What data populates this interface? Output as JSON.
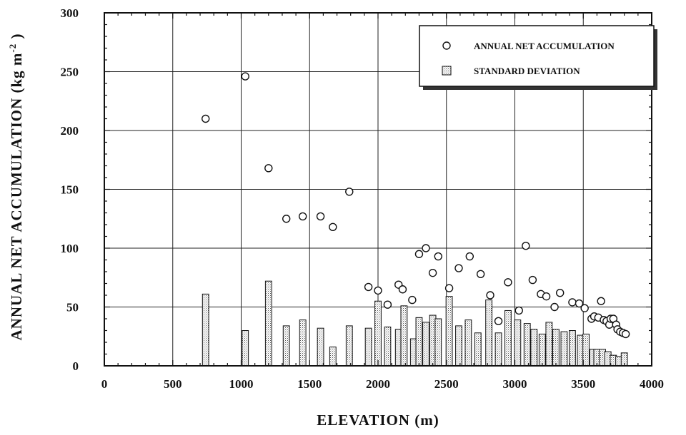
{
  "chart_data": {
    "type": "bar",
    "xlabel": "ELEVATION (m)",
    "ylabel_main": "ANNUAL NET ACCUMULATION (kg m",
    "ylabel_sup": "-2",
    "ylabel_close": " )",
    "xlim": [
      0,
      4000
    ],
    "ylim": [
      0,
      300
    ],
    "x_ticks": [
      0,
      500,
      1000,
      1500,
      2000,
      2500,
      3000,
      3500,
      4000
    ],
    "y_ticks": [
      0,
      50,
      100,
      150,
      200,
      250,
      300
    ],
    "grid": true,
    "legend_position": "top-right",
    "legend": [
      {
        "label": "ANNUAL NET ACCUMULATION",
        "marker": "circle"
      },
      {
        "label": "STANDARD DEVIATION",
        "marker": "stippled-bar"
      }
    ],
    "series": [
      {
        "name": "ANNUAL NET ACCUMULATION",
        "type": "scatter",
        "points": [
          [
            740,
            210
          ],
          [
            1030,
            246
          ],
          [
            1200,
            168
          ],
          [
            1330,
            125
          ],
          [
            1450,
            127
          ],
          [
            1580,
            127
          ],
          [
            1670,
            118
          ],
          [
            1790,
            148
          ],
          [
            1930,
            67
          ],
          [
            2000,
            64
          ],
          [
            2070,
            52
          ],
          [
            2150,
            69
          ],
          [
            2180,
            65
          ],
          [
            2250,
            56
          ],
          [
            2300,
            95
          ],
          [
            2350,
            100
          ],
          [
            2400,
            79
          ],
          [
            2440,
            93
          ],
          [
            2520,
            66
          ],
          [
            2590,
            83
          ],
          [
            2670,
            93
          ],
          [
            2750,
            78
          ],
          [
            2820,
            60
          ],
          [
            2880,
            38
          ],
          [
            2950,
            71
          ],
          [
            3030,
            47
          ],
          [
            3080,
            102
          ],
          [
            3130,
            73
          ],
          [
            3190,
            61
          ],
          [
            3230,
            59
          ],
          [
            3290,
            50
          ],
          [
            3330,
            62
          ],
          [
            3420,
            54
          ],
          [
            3470,
            53
          ],
          [
            3510,
            49
          ],
          [
            3560,
            40
          ],
          [
            3580,
            42
          ],
          [
            3610,
            41
          ],
          [
            3630,
            55
          ],
          [
            3650,
            39
          ],
          [
            3670,
            38
          ],
          [
            3690,
            35
          ],
          [
            3700,
            40
          ],
          [
            3720,
            40
          ],
          [
            3740,
            35
          ],
          [
            3750,
            31
          ],
          [
            3770,
            29
          ],
          [
            3790,
            28
          ],
          [
            3810,
            27
          ]
        ]
      },
      {
        "name": "STANDARD DEVIATION",
        "type": "bar",
        "bar_width": 46,
        "points": [
          [
            740,
            61
          ],
          [
            1030,
            30
          ],
          [
            1200,
            72
          ],
          [
            1330,
            34
          ],
          [
            1450,
            39
          ],
          [
            1580,
            32
          ],
          [
            1670,
            16
          ],
          [
            1790,
            34
          ],
          [
            1930,
            32
          ],
          [
            2000,
            55
          ],
          [
            2070,
            33
          ],
          [
            2150,
            31
          ],
          [
            2190,
            51
          ],
          [
            2260,
            23
          ],
          [
            2300,
            41
          ],
          [
            2350,
            37
          ],
          [
            2400,
            43
          ],
          [
            2440,
            40
          ],
          [
            2520,
            59
          ],
          [
            2590,
            34
          ],
          [
            2660,
            39
          ],
          [
            2730,
            28
          ],
          [
            2810,
            56
          ],
          [
            2880,
            28
          ],
          [
            2950,
            47
          ],
          [
            3020,
            39
          ],
          [
            3090,
            36
          ],
          [
            3140,
            31
          ],
          [
            3200,
            27
          ],
          [
            3250,
            37
          ],
          [
            3300,
            31
          ],
          [
            3360,
            29
          ],
          [
            3420,
            30
          ],
          [
            3480,
            26
          ],
          [
            3520,
            27
          ],
          [
            3570,
            14
          ],
          [
            3600,
            14
          ],
          [
            3640,
            14
          ],
          [
            3680,
            12
          ],
          [
            3720,
            9
          ],
          [
            3760,
            8
          ],
          [
            3800,
            11
          ]
        ]
      }
    ]
  }
}
